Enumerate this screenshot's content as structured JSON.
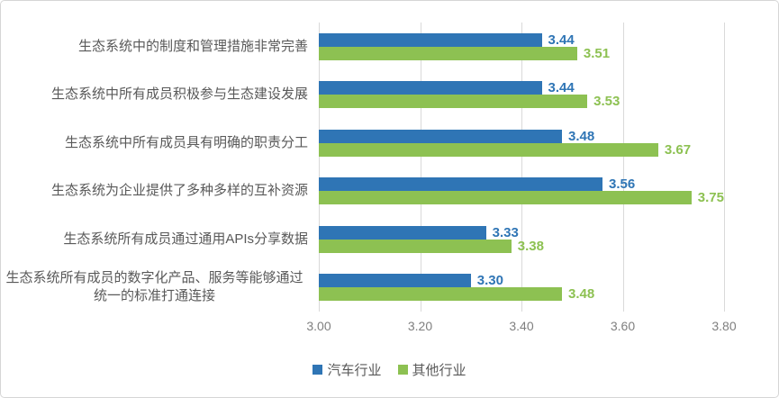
{
  "chart_data": {
    "type": "bar",
    "orientation": "horizontal",
    "title": "",
    "categories": [
      "生态系统中的制度和管理措施非常完善",
      "生态系统中所有成员积极参与生态建设发展",
      "生态系统中所有成员具有明确的职责分工",
      "生态系统为企业提供了多种多样的互补资源",
      "生态系统所有成员通过通用APIs分享数据",
      "生态系统所有成员的数字化产品、服务等能够通过统一的标准打通连接"
    ],
    "series": [
      {
        "name": "汽车行业",
        "color": "#2f75b5",
        "values": [
          3.44,
          3.44,
          3.48,
          3.56,
          3.33,
          3.3
        ]
      },
      {
        "name": "其他行业",
        "color": "#8dc152",
        "values": [
          3.51,
          3.53,
          3.67,
          3.75,
          3.38,
          3.48
        ]
      }
    ],
    "xlim": [
      3.0,
      3.8
    ],
    "xticks": [
      "3.00",
      "3.20",
      "3.40",
      "3.60",
      "3.80"
    ],
    "grid": true,
    "legend_position": "bottom",
    "value_labels": true,
    "value_label_decimals": 2
  },
  "colors": {
    "gridline": "#d9d9d9",
    "category_text": "#595959",
    "tick_text": "#7f7f7f",
    "legend_text": "#595959",
    "frame_border": "#d6d6d6",
    "background": "#ffffff"
  }
}
